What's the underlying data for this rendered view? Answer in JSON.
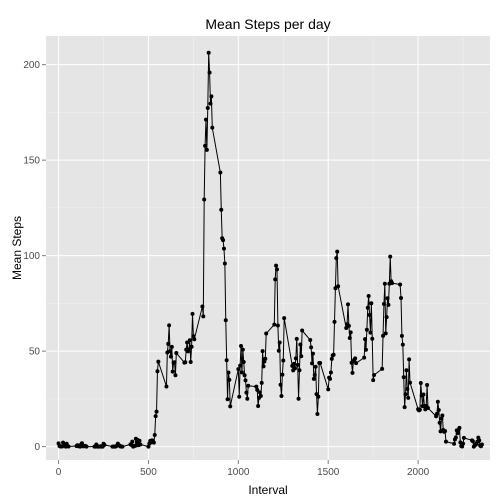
{
  "chart_data": {
    "type": "line",
    "title": "Mean Steps per day",
    "xlabel": "Interval",
    "ylabel": "Mean Steps",
    "xlim": [
      -70,
      2400
    ],
    "ylim": [
      -7,
      215
    ],
    "x_ticks": [
      0,
      500,
      1000,
      1500,
      2000
    ],
    "y_ticks": [
      0,
      50,
      100,
      150,
      200
    ],
    "grid": true,
    "background": "#e5e5e5",
    "line_color": "#000000",
    "points": true,
    "series": [
      {
        "points": [
          [
            0,
            1.7
          ],
          [
            5,
            0.3
          ],
          [
            10,
            0.1
          ],
          [
            15,
            0.2
          ],
          [
            20,
            0.1
          ],
          [
            25,
            2.1
          ],
          [
            30,
            0.5
          ],
          [
            35,
            0.9
          ],
          [
            40,
            0
          ],
          [
            45,
            1.5
          ],
          [
            50,
            0.3
          ],
          [
            55,
            0.1
          ],
          [
            100,
            0.3
          ],
          [
            105,
            0.7
          ],
          [
            110,
            0.2
          ],
          [
            115,
            0.3
          ],
          [
            120,
            0
          ],
          [
            125,
            1.1
          ],
          [
            130,
            1.8
          ],
          [
            135,
            0.2
          ],
          [
            140,
            0.2
          ],
          [
            145,
            0.4
          ],
          [
            150,
            0.3
          ],
          [
            155,
            0
          ],
          [
            200,
            0
          ],
          [
            205,
            0
          ],
          [
            210,
            1.1
          ],
          [
            215,
            0
          ],
          [
            220,
            0
          ],
          [
            225,
            0.1
          ],
          [
            230,
            0
          ],
          [
            235,
            0.2
          ],
          [
            240,
            0
          ],
          [
            245,
            0
          ],
          [
            250,
            1.5
          ],
          [
            255,
            0.9
          ],
          [
            300,
            0
          ],
          [
            305,
            0
          ],
          [
            310,
            0
          ],
          [
            315,
            0
          ],
          [
            320,
            0.2
          ],
          [
            325,
            0.6
          ],
          [
            330,
            1.6
          ],
          [
            335,
            0.6
          ],
          [
            340,
            0.5
          ],
          [
            345,
            0.1
          ],
          [
            350,
            0
          ],
          [
            355,
            0
          ],
          [
            400,
            1.2
          ],
          [
            405,
            0.9
          ],
          [
            410,
            2.6
          ],
          [
            415,
            0
          ],
          [
            420,
            0.3
          ],
          [
            425,
            0.4
          ],
          [
            430,
            4.1
          ],
          [
            435,
            0.7
          ],
          [
            440,
            3.5
          ],
          [
            445,
            0.8
          ],
          [
            450,
            3.1
          ],
          [
            455,
            1.1
          ],
          [
            500,
            0
          ],
          [
            505,
            1.6
          ],
          [
            510,
            3.0
          ],
          [
            515,
            2.2
          ],
          [
            520,
            3.3
          ],
          [
            525,
            3.0
          ],
          [
            530,
            2.1
          ],
          [
            535,
            6.1
          ],
          [
            540,
            16.0
          ],
          [
            545,
            18.3
          ],
          [
            550,
            39.5
          ],
          [
            555,
            44.5
          ],
          [
            600,
            31.5
          ],
          [
            605,
            49.3
          ],
          [
            610,
            53.8
          ],
          [
            615,
            63.5
          ],
          [
            620,
            50
          ],
          [
            625,
            47.1
          ],
          [
            630,
            52.2
          ],
          [
            635,
            39.3
          ],
          [
            640,
            44.0
          ],
          [
            645,
            44.2
          ],
          [
            650,
            37.4
          ],
          [
            655,
            49.0
          ],
          [
            700,
            44.0
          ],
          [
            705,
            44.2
          ],
          [
            710,
            50.8
          ],
          [
            715,
            54.5
          ],
          [
            720,
            49.9
          ],
          [
            725,
            50.9
          ],
          [
            730,
            55.7
          ],
          [
            735,
            44.3
          ],
          [
            740,
            52.3
          ],
          [
            745,
            69.5
          ],
          [
            750,
            57.8
          ],
          [
            755,
            56.2
          ],
          [
            800,
            73.4
          ],
          [
            805,
            68.2
          ],
          [
            810,
            129.4
          ],
          [
            815,
            157.5
          ],
          [
            820,
            171.2
          ],
          [
            825,
            155.4
          ],
          [
            830,
            177.3
          ],
          [
            835,
            206.2
          ],
          [
            840,
            195.9
          ],
          [
            845,
            179.6
          ],
          [
            850,
            183.4
          ],
          [
            855,
            167.0
          ],
          [
            900,
            143.5
          ],
          [
            905,
            124.0
          ],
          [
            910,
            109.1
          ],
          [
            915,
            108.1
          ],
          [
            920,
            103.7
          ],
          [
            925,
            95.9
          ],
          [
            930,
            66.2
          ],
          [
            935,
            45.2
          ],
          [
            940,
            24.8
          ],
          [
            945,
            38.8
          ],
          [
            950,
            34.98
          ],
          [
            955,
            21.1
          ],
          [
            1000,
            40.6
          ],
          [
            1005,
            26.1
          ],
          [
            1010,
            42.4
          ],
          [
            1015,
            52.7
          ],
          [
            1020,
            38.9
          ],
          [
            1025,
            50.8
          ],
          [
            1030,
            44.3
          ],
          [
            1035,
            37.4
          ],
          [
            1040,
            34.7
          ],
          [
            1045,
            28.3
          ],
          [
            1050,
            25.1
          ],
          [
            1055,
            31.9
          ],
          [
            1100,
            31.4
          ],
          [
            1105,
            29.7
          ],
          [
            1110,
            21.3
          ],
          [
            1115,
            25.5
          ],
          [
            1120,
            28.4
          ],
          [
            1125,
            26.5
          ],
          [
            1130,
            33.4
          ],
          [
            1135,
            50.0
          ],
          [
            1140,
            42.0
          ],
          [
            1145,
            44.6
          ],
          [
            1150,
            46.0
          ],
          [
            1155,
            59.2
          ],
          [
            1200,
            63.9
          ],
          [
            1205,
            87.6
          ],
          [
            1210,
            94.8
          ],
          [
            1215,
            92.8
          ],
          [
            1220,
            63.4
          ],
          [
            1225,
            50.2
          ],
          [
            1230,
            54.5
          ],
          [
            1235,
            32.4
          ],
          [
            1240,
            26.5
          ],
          [
            1245,
            37.7
          ],
          [
            1250,
            45.1
          ],
          [
            1255,
            67.3
          ],
          [
            1300,
            42.3
          ],
          [
            1305,
            39.9
          ],
          [
            1310,
            43.3
          ],
          [
            1315,
            40.98
          ],
          [
            1320,
            46.2
          ],
          [
            1325,
            56.4
          ],
          [
            1330,
            42.8
          ],
          [
            1335,
            25.1
          ],
          [
            1340,
            39.97
          ],
          [
            1345,
            53.5
          ],
          [
            1350,
            47.3
          ],
          [
            1355,
            60.8
          ],
          [
            1400,
            55.8
          ],
          [
            1405,
            51.96
          ],
          [
            1410,
            43.6
          ],
          [
            1415,
            48.7
          ],
          [
            1420,
            35.5
          ],
          [
            1425,
            37.5
          ],
          [
            1430,
            41.8
          ],
          [
            1435,
            27.5
          ],
          [
            1440,
            17.1
          ],
          [
            1445,
            26.1
          ],
          [
            1450,
            43.8
          ],
          [
            1455,
            43.8
          ],
          [
            1500,
            30.0
          ],
          [
            1505,
            36.1
          ],
          [
            1510,
            35.5
          ],
          [
            1515,
            38.8
          ],
          [
            1520,
            45.96
          ],
          [
            1525,
            47.8
          ],
          [
            1530,
            48.1
          ],
          [
            1535,
            65.3
          ],
          [
            1540,
            82.9
          ],
          [
            1545,
            98.7
          ],
          [
            1550,
            102.1
          ],
          [
            1555,
            84.0
          ],
          [
            1600,
            62.1
          ],
          [
            1605,
            64.1
          ],
          [
            1610,
            74.5
          ],
          [
            1615,
            63.2
          ],
          [
            1620,
            56.9
          ],
          [
            1625,
            59.8
          ],
          [
            1630,
            43.9
          ],
          [
            1635,
            38.6
          ],
          [
            1640,
            44.7
          ],
          [
            1645,
            45.5
          ],
          [
            1650,
            46.2
          ],
          [
            1655,
            43.7
          ],
          [
            1700,
            46.6
          ],
          [
            1705,
            56.3
          ],
          [
            1710,
            50.7
          ],
          [
            1715,
            61.2
          ],
          [
            1720,
            72.7
          ],
          [
            1725,
            78.9
          ],
          [
            1730,
            68.9
          ],
          [
            1735,
            59.7
          ],
          [
            1740,
            75.1
          ],
          [
            1745,
            56.5
          ],
          [
            1750,
            34.8
          ],
          [
            1755,
            37.5
          ],
          [
            1800,
            40.7
          ],
          [
            1805,
            58.0
          ],
          [
            1810,
            74.7
          ],
          [
            1815,
            85.3
          ],
          [
            1820,
            59.3
          ],
          [
            1825,
            67.8
          ],
          [
            1830,
            77.7
          ],
          [
            1835,
            74.2
          ],
          [
            1840,
            85.3
          ],
          [
            1845,
            99.5
          ],
          [
            1850,
            86.6
          ],
          [
            1855,
            85.6
          ],
          [
            1900,
            84.9
          ],
          [
            1905,
            77.8
          ],
          [
            1910,
            58.0
          ],
          [
            1915,
            53.4
          ],
          [
            1920,
            36.3
          ],
          [
            1925,
            20.7
          ],
          [
            1930,
            27.4
          ],
          [
            1935,
            40.0
          ],
          [
            1940,
            30.2
          ],
          [
            1945,
            25.5
          ],
          [
            1950,
            45.7
          ],
          [
            1955,
            33.5
          ],
          [
            2000,
            19.6
          ],
          [
            2005,
            19.0
          ],
          [
            2010,
            19.3
          ],
          [
            2015,
            33.3
          ],
          [
            2020,
            26.8
          ],
          [
            2025,
            21.2
          ],
          [
            2030,
            27.3
          ],
          [
            2035,
            21.3
          ],
          [
            2040,
            19.5
          ],
          [
            2045,
            21.3
          ],
          [
            2050,
            32.3
          ],
          [
            2055,
            20.2
          ],
          [
            2100,
            15.9
          ],
          [
            2105,
            17.2
          ],
          [
            2110,
            23.5
          ],
          [
            2115,
            19.2
          ],
          [
            2120,
            12.5
          ],
          [
            2125,
            8.0
          ],
          [
            2130,
            14.7
          ],
          [
            2135,
            16.3
          ],
          [
            2140,
            8.7
          ],
          [
            2145,
            7.8
          ],
          [
            2150,
            8.1
          ],
          [
            2155,
            2.6
          ],
          [
            2200,
            1.5
          ],
          [
            2205,
            3.7
          ],
          [
            2210,
            4.8
          ],
          [
            2215,
            8.5
          ],
          [
            2220,
            7.1
          ],
          [
            2225,
            8.7
          ],
          [
            2230,
            9.8
          ],
          [
            2235,
            2.2
          ],
          [
            2240,
            0.3
          ],
          [
            2245,
            0.1
          ],
          [
            2250,
            1.6
          ],
          [
            2255,
            4.6
          ],
          [
            2300,
            3.3
          ],
          [
            2305,
            2.8
          ],
          [
            2310,
            0
          ],
          [
            2315,
            0.8
          ],
          [
            2320,
            1.0
          ],
          [
            2325,
            1.6
          ],
          [
            2330,
            2.6
          ],
          [
            2335,
            4.7
          ],
          [
            2340,
            3.3
          ],
          [
            2345,
            0.6
          ],
          [
            2350,
            0.2
          ],
          [
            2355,
            1.1
          ]
        ]
      }
    ]
  }
}
